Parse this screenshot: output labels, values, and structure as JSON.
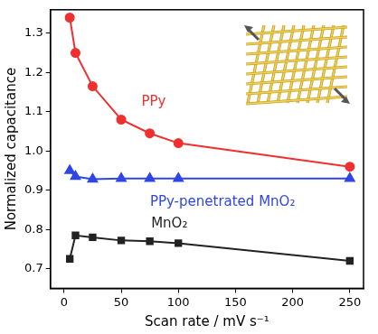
{
  "chart_data": {
    "type": "line",
    "x_label": "Scan rate / mV s⁻¹",
    "y_label": "Normalized capacitance",
    "x": [
      5,
      10,
      25,
      50,
      75,
      100,
      250
    ],
    "series": [
      {
        "name": "PPy",
        "color": "#f03030",
        "marker": "circle",
        "line_style": "solid",
        "values": [
          1.34,
          1.25,
          1.165,
          1.08,
          1.045,
          1.02,
          0.96
        ]
      },
      {
        "name": "PPy-penetrated MnO₂",
        "color": "#2f45e6",
        "marker": "triangle",
        "line_style": "solid",
        "values": [
          0.95,
          0.935,
          0.928,
          0.93,
          0.93,
          0.93,
          0.93
        ]
      },
      {
        "name": "MnO₂",
        "color": "#222222",
        "marker": "square",
        "line_style": "solid",
        "values": [
          0.725,
          0.785,
          0.78,
          0.772,
          0.77,
          0.765,
          0.72
        ]
      }
    ],
    "xlim": [
      -12,
      262
    ],
    "ylim": [
      0.65,
      1.36
    ],
    "xticks": [
      0,
      50,
      100,
      150,
      200,
      250
    ],
    "yticks": [
      0.7,
      0.8,
      0.9,
      {
        "value": 1,
        "label": "1.0"
      },
      1.1,
      1.2,
      1.3
    ],
    "grid": false
  }
}
